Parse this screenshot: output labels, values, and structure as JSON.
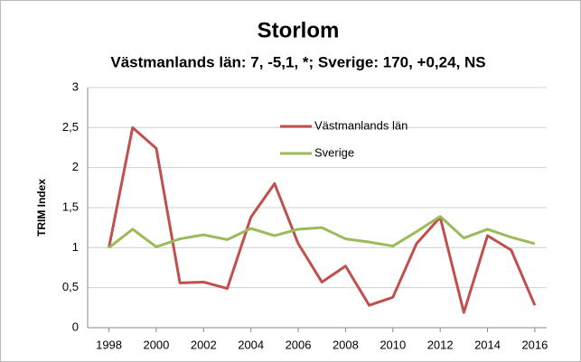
{
  "chart_data": {
    "type": "line",
    "title": "Storlom",
    "subtitle": "Västmanlands län: 7, -5,1, *; Sverige: 170, +0,24, NS",
    "y_label": "TRIM Index",
    "x": [
      1998,
      1999,
      2000,
      2001,
      2002,
      2003,
      2004,
      2005,
      2006,
      2007,
      2008,
      2009,
      2010,
      2011,
      2012,
      2013,
      2014,
      2015,
      2016
    ],
    "series": [
      {
        "name": "Västmanlands län",
        "color": "#c0504d",
        "values": [
          1.0,
          2.5,
          2.24,
          0.56,
          0.57,
          0.49,
          1.38,
          1.8,
          1.05,
          0.57,
          0.77,
          0.28,
          0.38,
          1.05,
          1.38,
          0.19,
          1.15,
          0.97,
          0.28
        ]
      },
      {
        "name": "Sverige",
        "color": "#9bbb59",
        "values": [
          1.0,
          1.23,
          1.01,
          1.11,
          1.16,
          1.1,
          1.24,
          1.15,
          1.23,
          1.25,
          1.11,
          1.07,
          1.02,
          1.2,
          1.39,
          1.12,
          1.23,
          1.13,
          1.05
        ]
      }
    ],
    "xlim": [
      1997.1,
      2016.5
    ],
    "xticks": [
      1998,
      2000,
      2002,
      2004,
      2006,
      2008,
      2010,
      2012,
      2014,
      2016
    ],
    "ylim": [
      0,
      3
    ],
    "yticks": [
      0,
      {
        "value": 0.5,
        "label": "0,5"
      },
      1,
      {
        "value": 1.5,
        "label": "1,5"
      },
      2,
      {
        "value": 2.5,
        "label": "2,5"
      },
      3
    ],
    "grid": true
  }
}
